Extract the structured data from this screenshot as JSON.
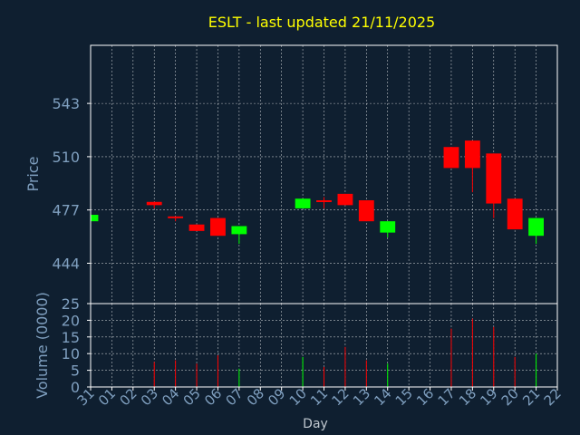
{
  "colors": {
    "background": "#0f1f30",
    "title": "#ffff00",
    "axis_text": "#7f9fbf",
    "day_label": "#c0c8d0",
    "frame": "#ffffff",
    "grid": "#ffffff",
    "up": "#00ff00",
    "down": "#ff0000",
    "doji": "#ff0000"
  },
  "chart_data": {
    "type": "candlestick",
    "title": "ESLT - last updated 21/11/2025",
    "price_panel": {
      "ylabel": "Price",
      "ylim": [
        419,
        579
      ],
      "yticks": [
        444,
        477,
        510,
        543
      ],
      "grid": true
    },
    "volume_panel": {
      "ylabel": "Volume (0000)",
      "ylim": [
        0,
        25
      ],
      "yticks": [
        0,
        5,
        10,
        15,
        20,
        25
      ],
      "grid": true
    },
    "xlabel": "Day",
    "xlim": [
      0,
      22
    ],
    "x_tick_labels": [
      "31",
      "01",
      "02",
      "03",
      "04",
      "05",
      "06",
      "07",
      "08",
      "09",
      "10",
      "11",
      "12",
      "13",
      "14",
      "15",
      "16",
      "17",
      "18",
      "19",
      "20",
      "21",
      "22"
    ],
    "candles": [
      {
        "x": 0,
        "open": 470,
        "close": 474,
        "high": 474,
        "low": 470,
        "volume": 0
      },
      {
        "x": 3,
        "open": 482,
        "close": 480,
        "high": 482,
        "low": 478,
        "volume": 7.5
      },
      {
        "x": 4,
        "open": 473,
        "close": 473,
        "high": 473,
        "low": 470,
        "volume": 8
      },
      {
        "x": 5,
        "open": 468,
        "close": 464,
        "high": 468,
        "low": 464,
        "volume": 7
      },
      {
        "x": 6,
        "open": 472,
        "close": 461,
        "high": 472,
        "low": 461,
        "volume": 9.5
      },
      {
        "x": 7,
        "open": 462,
        "close": 467,
        "high": 467,
        "low": 456,
        "volume": 5.5
      },
      {
        "x": 10,
        "open": 478,
        "close": 484,
        "high": 484,
        "low": 478,
        "volume": 9
      },
      {
        "x": 11,
        "open": 483,
        "close": 483,
        "high": 485,
        "low": 478,
        "volume": 6
      },
      {
        "x": 12,
        "open": 487,
        "close": 480,
        "high": 487,
        "low": 480,
        "volume": 12
      },
      {
        "x": 13,
        "open": 483,
        "close": 470,
        "high": 483,
        "low": 470,
        "volume": 8
      },
      {
        "x": 14,
        "open": 463,
        "close": 470,
        "high": 470,
        "low": 460,
        "volume": 7
      },
      {
        "x": 17,
        "open": 516,
        "close": 503,
        "high": 516,
        "low": 503,
        "volume": 17.5
      },
      {
        "x": 18,
        "open": 520,
        "close": 503,
        "high": 520,
        "low": 488,
        "volume": 20.5
      },
      {
        "x": 19,
        "open": 512,
        "close": 481,
        "high": 512,
        "low": 472,
        "volume": 18
      },
      {
        "x": 20,
        "open": 484,
        "close": 465,
        "high": 484,
        "low": 465,
        "volume": 9
      },
      {
        "x": 21,
        "open": 461,
        "close": 472,
        "high": 472,
        "low": 456,
        "volume": 10
      }
    ]
  }
}
